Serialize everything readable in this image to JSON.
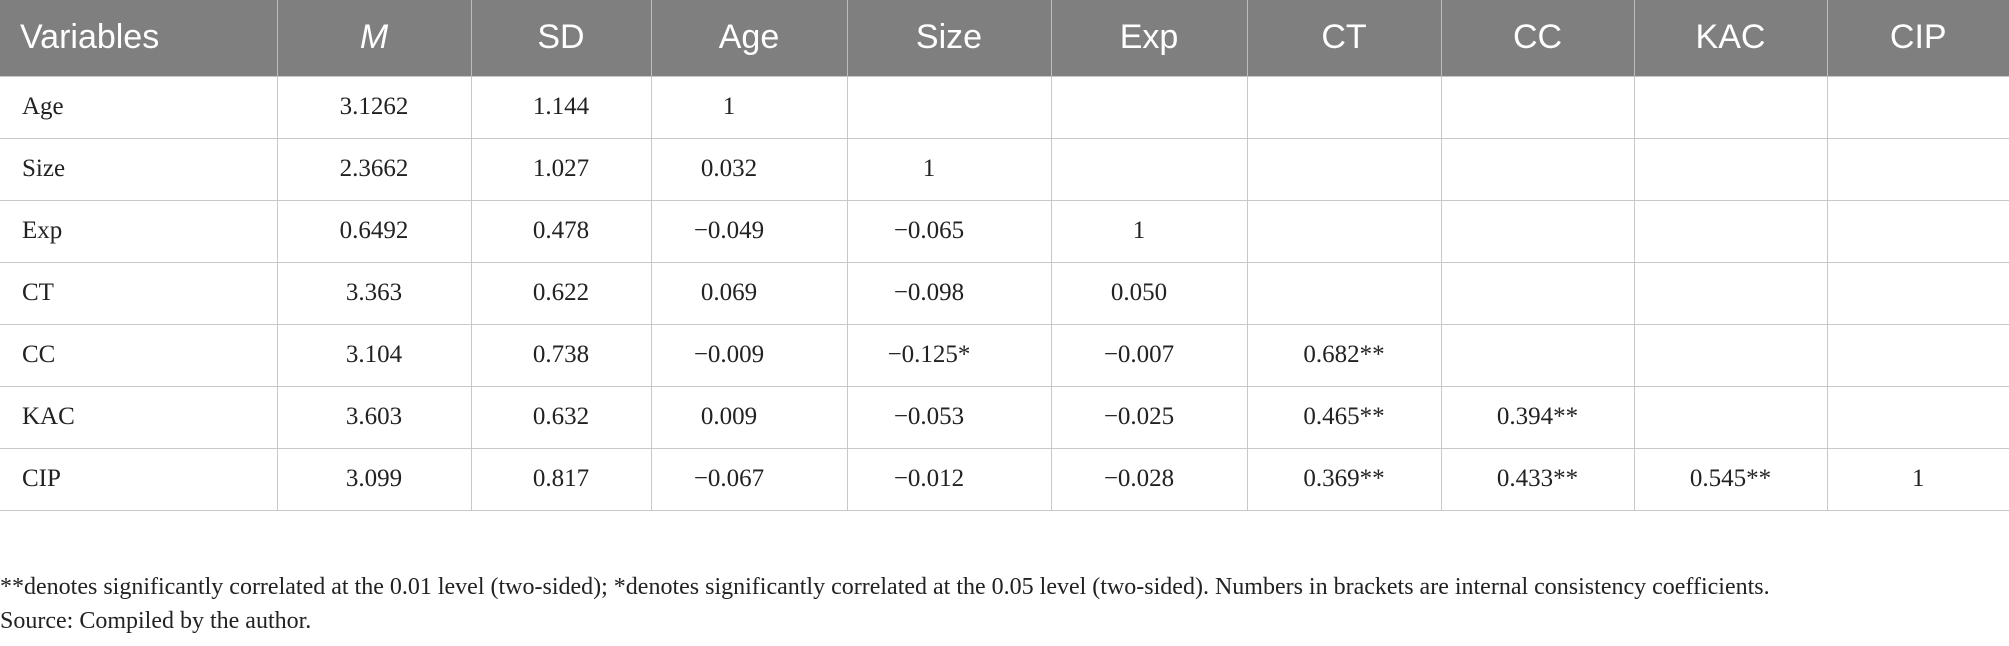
{
  "table": {
    "headers": [
      "Variables",
      "M",
      "SD",
      "Age",
      "Size",
      "Exp",
      "CT",
      "CC",
      "KAC",
      "CIP"
    ],
    "rows": [
      [
        "Age",
        "3.1262",
        "1.144",
        "1",
        "",
        "",
        "",
        "",
        "",
        ""
      ],
      [
        "Size",
        "2.3662",
        "1.027",
        "0.032",
        "1",
        "",
        "",
        "",
        "",
        ""
      ],
      [
        "Exp",
        "0.6492",
        "0.478",
        "−0.049",
        "−0.065",
        "1",
        "",
        "",
        "",
        ""
      ],
      [
        "CT",
        "3.363",
        "0.622",
        "0.069",
        "−0.098",
        "0.050",
        "",
        "",
        "",
        ""
      ],
      [
        "CC",
        "3.104",
        "0.738",
        "−0.009",
        "−0.125*",
        "−0.007",
        "0.682**",
        "",
        "",
        ""
      ],
      [
        "KAC",
        "3.603",
        "0.632",
        "0.009",
        "−0.053",
        "−0.025",
        "0.465**",
        "0.394**",
        "",
        ""
      ],
      [
        "CIP",
        "3.099",
        "0.817",
        "−0.067",
        "−0.012",
        "−0.028",
        "0.369**",
        "0.433**",
        "0.545**",
        "1"
      ]
    ]
  },
  "notes": {
    "significance": "**denotes significantly correlated at the 0.01 level (two-sided); *denotes significantly correlated at the 0.05 level (two-sided). Numbers in brackets are internal consistency coefficients.",
    "source": "Source: Compiled by the author."
  }
}
